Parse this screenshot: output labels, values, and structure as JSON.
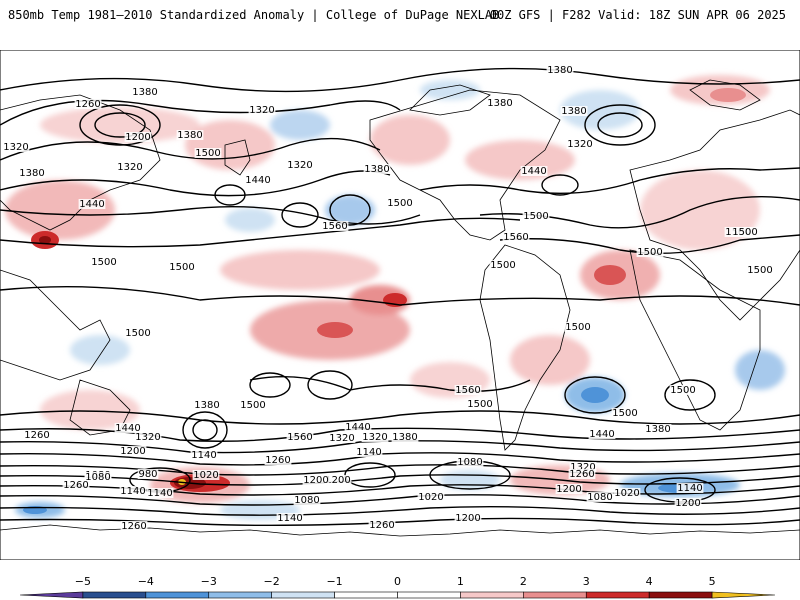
{
  "header": {
    "title": "850mb Temp 1981–2010 Standardized Anomaly | College of DuPage NEXLAB",
    "run_info": "00Z GFS | F282 Valid: 18Z SUN APR 06 2025"
  },
  "colorbar": {
    "labels": [
      "−5",
      "−4",
      "−3",
      "−2",
      "−1",
      "0",
      "1",
      "2",
      "3",
      "4",
      "5"
    ],
    "colors": [
      "#5b3b9b",
      "#2a4f8f",
      "#4f93d8",
      "#8fbde8",
      "#cfe2f3",
      "#ffffff",
      "#ffffff",
      "#f5c8c8",
      "#e88f8f",
      "#cc2b2b",
      "#8a0f0f",
      "#f0c020"
    ]
  },
  "contour_labels": [
    {
      "text": "1380"
    },
    {
      "text": "1380"
    },
    {
      "text": "1260"
    },
    {
      "text": "1320"
    },
    {
      "text": "1200"
    },
    {
      "text": "1380"
    },
    {
      "text": "1320"
    },
    {
      "text": "1320"
    },
    {
      "text": "1380"
    },
    {
      "text": "1440"
    },
    {
      "text": "1500"
    },
    {
      "text": "1320"
    },
    {
      "text": "1440"
    },
    {
      "text": "1380"
    },
    {
      "text": "1500"
    },
    {
      "text": "1500"
    },
    {
      "text": "1560"
    },
    {
      "text": "1500"
    },
    {
      "text": "1500"
    },
    {
      "text": "1380"
    },
    {
      "text": "1380"
    },
    {
      "text": "1320"
    },
    {
      "text": "1440"
    },
    {
      "text": "1500"
    },
    {
      "text": "1560"
    },
    {
      "text": "1500"
    },
    {
      "text": "1500"
    },
    {
      "text": "1500"
    },
    {
      "text": "1500"
    },
    {
      "text": "1500"
    },
    {
      "text": "1500"
    },
    {
      "text": "1500"
    },
    {
      "text": "1380"
    },
    {
      "text": "1500"
    },
    {
      "text": "1560"
    },
    {
      "text": "1500"
    },
    {
      "text": "1440"
    },
    {
      "text": "1320"
    },
    {
      "text": "1260"
    },
    {
      "text": "1200"
    },
    {
      "text": "1080"
    },
    {
      "text": "1140"
    },
    {
      "text": "1260"
    },
    {
      "text": "1560"
    },
    {
      "text": "1440"
    },
    {
      "text": "1320"
    },
    {
      "text": "1380"
    },
    {
      "text": "1140"
    },
    {
      "text": "1080"
    },
    {
      "text": "1200"
    },
    {
      "text": "980"
    },
    {
      "text": "1020"
    },
    {
      "text": "1080"
    },
    {
      "text": "1260"
    },
    {
      "text": "1140"
    },
    {
      "text": "1080"
    },
    {
      "text": "1020"
    },
    {
      "text": "1320"
    },
    {
      "text": "1260"
    },
    {
      "text": "1200"
    },
    {
      "text": "1080"
    },
    {
      "text": "1020"
    },
    {
      "text": "1140"
    },
    {
      "text": "1200"
    },
    {
      "text": "1440"
    },
    {
      "text": "1380"
    },
    {
      "text": "1140"
    },
    {
      "text": "1320"
    },
    {
      "text": "1200"
    },
    {
      "text": "1140"
    },
    {
      "text": "1260"
    },
    {
      "text": "1200"
    },
    {
      "text": "1260"
    },
    {
      "text": "1500"
    }
  ]
}
